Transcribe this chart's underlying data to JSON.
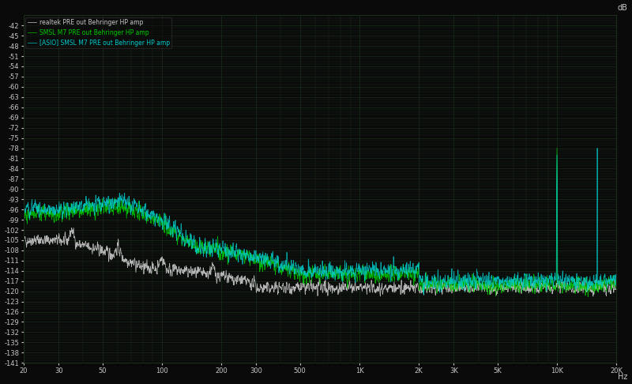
{
  "background_color": "#0a0a0a",
  "grid_color": "#1a2e1a",
  "text_color": "#c8c8c8",
  "ylabel": "dB",
  "xlabel": "Hz",
  "ylim": [
    -141,
    -39
  ],
  "yticks": [
    -42,
    -45,
    -48,
    -51,
    -54,
    -57,
    -60,
    -63,
    -66,
    -69,
    -72,
    -75,
    -78,
    -81,
    -84,
    -87,
    -90,
    -93,
    -96,
    -99,
    -102,
    -105,
    -108,
    -111,
    -114,
    -117,
    -120,
    -123,
    -126,
    -129,
    -132,
    -135,
    -138,
    -141
  ],
  "xmin": 20,
  "xmax": 20000,
  "xtick_vals": [
    20,
    30,
    50,
    100,
    200,
    300,
    500,
    1000,
    2000,
    3000,
    5000,
    10000,
    20000
  ],
  "xtick_labels": [
    "20",
    "30",
    "50",
    "100",
    "200",
    "300",
    "500",
    "1K",
    "2K",
    "3K",
    "5K",
    "10K",
    "20K"
  ],
  "legend": [
    {
      "label": "realtek PRE out Behringer HP amp",
      "color": "#c8c8c8"
    },
    {
      "label": "SMSL M7 PRE out Behringer HP amp",
      "color": "#00cc00"
    },
    {
      "label": "[ASIO] SMSL M7 PRE out Behringer HP amp",
      "color": "#00cccc"
    }
  ]
}
